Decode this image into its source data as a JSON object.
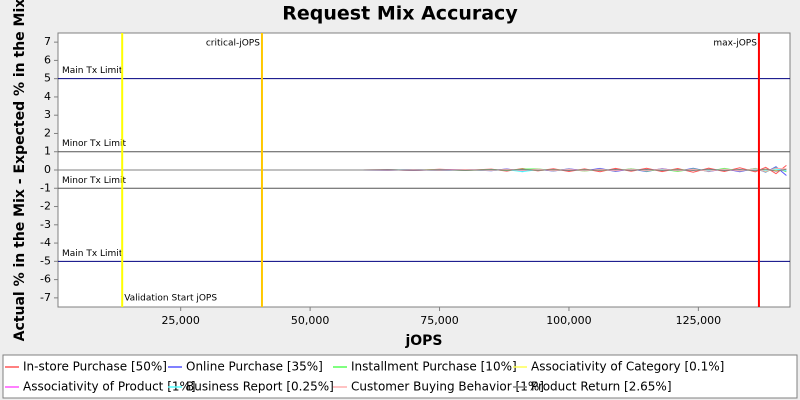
{
  "chart_data": {
    "type": "line",
    "title": "Request Mix Accuracy",
    "xlabel": "jOPS",
    "ylabel": "Actual % in the Mix - Expected % in the Mix",
    "xlim": [
      1300,
      142700
    ],
    "ylim": [
      -7.5,
      7.5
    ],
    "xticks": [
      {
        "value": 25000,
        "label": "25,000"
      },
      {
        "value": 50000,
        "label": "50,000"
      },
      {
        "value": 75000,
        "label": "75,000"
      },
      {
        "value": 100000,
        "label": "100,000"
      },
      {
        "value": 125000,
        "label": "125,000"
      }
    ],
    "yticks": [
      -7,
      -6,
      -5,
      -4,
      -3,
      -2,
      -1,
      0,
      1,
      2,
      3,
      4,
      5,
      6,
      7
    ],
    "limits": [
      {
        "label": "Main Tx Limit",
        "y": 5
      },
      {
        "label": "Minor Tx Limit",
        "y": 1
      },
      {
        "label": "Minor Tx Limit",
        "y": -1
      },
      {
        "label": "Main Tx Limit",
        "y": -5
      }
    ],
    "markers": [
      {
        "label": "Validation Start jOPS",
        "x": 13700,
        "color": "#ffff00"
      },
      {
        "label": "critical-jOPS",
        "x": 40700,
        "color": "#ffc800"
      },
      {
        "label": "max-jOPS",
        "x": 136700,
        "color": "#ff0000"
      }
    ],
    "x": [
      1400,
      60000,
      65000,
      70000,
      75000,
      80000,
      85000,
      88000,
      91000,
      94000,
      97000,
      100000,
      103000,
      106000,
      109000,
      112000,
      115000,
      118000,
      121000,
      124000,
      127000,
      130000,
      133000,
      136000,
      138000,
      140000,
      142000
    ],
    "series": [
      {
        "name": "In-store Purchase [50%]",
        "color": "#ff5555",
        "values": [
          0,
          0,
          0.02,
          -0.03,
          0.04,
          -0.02,
          0.05,
          -0.06,
          0.08,
          -0.05,
          0.07,
          -0.08,
          0.06,
          -0.1,
          0.09,
          -0.07,
          0.1,
          -0.09,
          0.08,
          -0.12,
          0.1,
          -0.08,
          0.12,
          -0.1,
          0.15,
          -0.2,
          0.25
        ]
      },
      {
        "name": "Online Purchase [35%]",
        "color": "#5555ff",
        "values": [
          0,
          0,
          -0.02,
          0.03,
          -0.03,
          0.02,
          -0.04,
          0.06,
          -0.07,
          0.05,
          -0.06,
          0.07,
          -0.05,
          0.09,
          -0.08,
          0.06,
          -0.09,
          0.08,
          -0.07,
          0.1,
          -0.09,
          0.07,
          -0.1,
          0.09,
          -0.12,
          0.18,
          -0.3
        ]
      },
      {
        "name": "Installment Purchase [10%]",
        "color": "#55ff55",
        "values": [
          0,
          0,
          0.01,
          -0.01,
          0.02,
          -0.02,
          0.03,
          -0.03,
          0.05,
          0.06,
          -0.04,
          0.05,
          -0.06,
          0.04,
          -0.05,
          0.07,
          -0.06,
          0.05,
          -0.08,
          0.06,
          -0.07,
          0.09,
          -0.06,
          0.08,
          -0.1,
          0.12,
          -0.1
        ]
      },
      {
        "name": "Associativity of Category [0.1%]",
        "color": "#ffff55",
        "values": [
          0,
          0,
          0,
          0,
          0.01,
          0,
          -0.01,
          0.01,
          0,
          -0.01,
          0.01,
          0,
          0.01,
          -0.01,
          0,
          0.01,
          -0.01,
          0,
          0.01,
          0,
          -0.01,
          0.01,
          0,
          -0.01,
          0.02,
          -0.02,
          0.02
        ]
      },
      {
        "name": "Associativity of Product [1%]",
        "color": "#ff55ff",
        "values": [
          0,
          0,
          0.01,
          -0.02,
          0.01,
          0.02,
          -0.02,
          0.03,
          -0.03,
          0.02,
          -0.03,
          0.04,
          -0.02,
          0.03,
          -0.04,
          0.03,
          -0.02,
          0.04,
          -0.03,
          0.02,
          -0.04,
          0.03,
          -0.05,
          0.04,
          -0.06,
          0.08,
          -0.05
        ]
      },
      {
        "name": "Business Report [0.25%]",
        "color": "#55ffff",
        "values": [
          0,
          0,
          0,
          0.01,
          -0.01,
          0.01,
          -0.02,
          0.02,
          -0.1,
          0.03,
          -0.02,
          0.02,
          -0.03,
          0.02,
          -0.01,
          0.03,
          -0.02,
          0.02,
          -0.03,
          0.01,
          -0.02,
          0.03,
          -0.02,
          0.01,
          -0.04,
          0.05,
          -0.03
        ]
      },
      {
        "name": "Customer Buying Behavior [1%]",
        "color": "#ffafaf",
        "values": [
          0,
          0,
          -0.01,
          0.02,
          -0.02,
          0.03,
          -0.02,
          0.04,
          -0.03,
          0.05,
          -0.04,
          0.03,
          -0.05,
          0.04,
          -0.03,
          0.05,
          -0.04,
          0.06,
          -0.05,
          0.04,
          -0.06,
          0.05,
          -0.04,
          0.06,
          -0.08,
          0.1,
          0.06
        ]
      },
      {
        "name": "Product Return [2.65%]",
        "color": "#808080",
        "values": [
          0,
          0,
          0.01,
          -0.01,
          0.01,
          -0.02,
          0.02,
          -0.01,
          0.03,
          -0.02,
          0.02,
          -0.03,
          0.02,
          -0.02,
          0.03,
          -0.02,
          0.03,
          -0.03,
          0.02,
          -0.03,
          0.04,
          -0.03,
          0.03,
          -0.04,
          0.05,
          -0.06,
          0.04
        ]
      }
    ]
  }
}
